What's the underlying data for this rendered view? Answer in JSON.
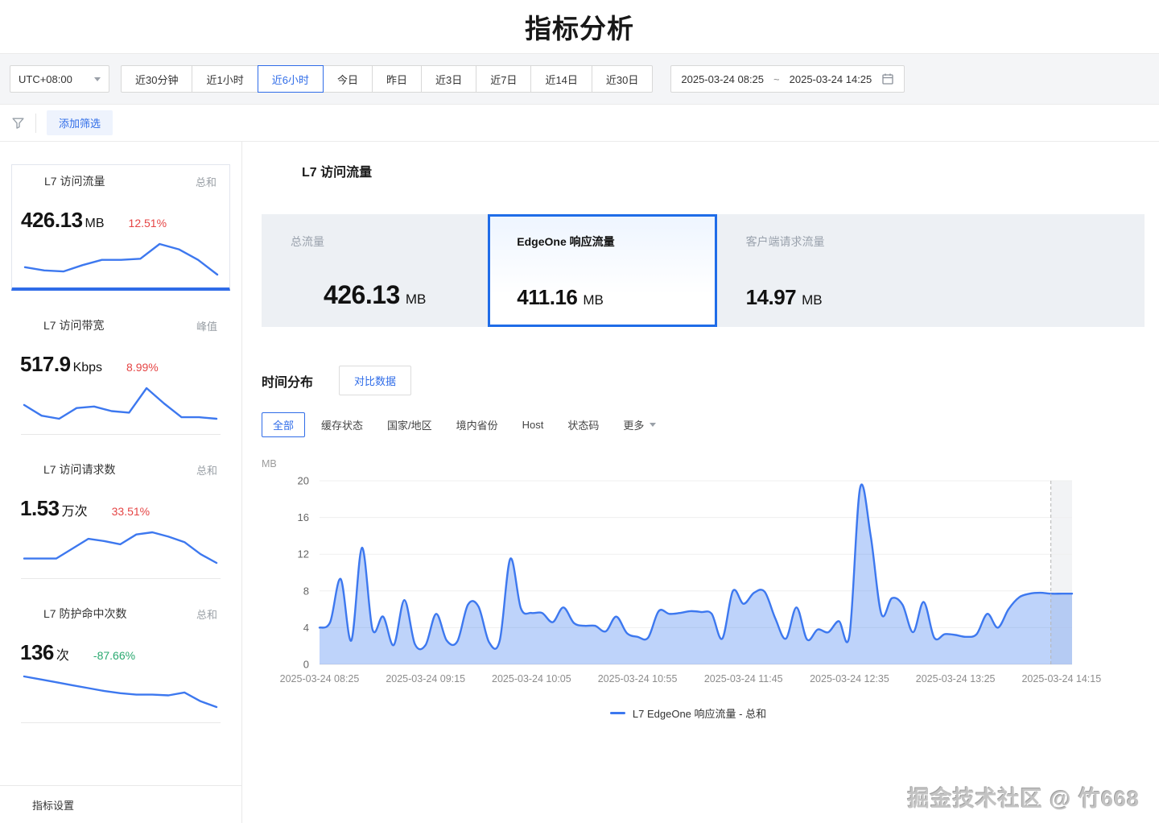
{
  "page_title": "指标分析",
  "colors": {
    "accent": "#2f6ce8",
    "chart_line": "#3d78ef",
    "chart_fill": "rgba(64,127,240,0.34)",
    "negative_red": "#e54545",
    "positive_green": "#2aa970"
  },
  "toolbar": {
    "timezone": "UTC+08:00",
    "ranges": [
      "近30分钟",
      "近1小时",
      "近6小时",
      "今日",
      "昨日",
      "近3日",
      "近7日",
      "近14日",
      "近30日"
    ],
    "selected_range": "近6小时",
    "date_start": "2025-03-24 08:25",
    "date_separator": "~",
    "date_end": "2025-03-24 14:25"
  },
  "filter_bar": {
    "add_filter_label": "添加筛选"
  },
  "sidebar": {
    "cards": [
      {
        "title": "L7 访问流量",
        "agg": "总和",
        "value": "426.13",
        "unit": "MB",
        "delta": "12.51%",
        "delta_color": "#e54545",
        "selected": true,
        "spark": [
          5.2,
          4.9,
          4.8,
          5.4,
          5.9,
          5.9,
          6.0,
          7.4,
          6.9,
          5.9,
          4.5
        ]
      },
      {
        "title": "L7 访问带宽",
        "agg": "峰值",
        "value": "517.9",
        "unit": "Kbps",
        "delta": "8.99%",
        "delta_color": "#e54545",
        "selected": false,
        "spark": [
          5.1,
          4.4,
          4.2,
          4.9,
          5.0,
          4.7,
          4.6,
          6.2,
          5.2,
          4.3,
          4.3,
          4.2
        ]
      },
      {
        "title": "L7 访问请求数",
        "agg": "总和",
        "value": "1.53",
        "unit": "万次",
        "delta": "33.51%",
        "delta_color": "#e54545",
        "selected": false,
        "spark": [
          4.0,
          4.0,
          4.0,
          4.9,
          5.8,
          5.6,
          5.3,
          6.2,
          6.4,
          6.0,
          5.5,
          4.4,
          3.6
        ]
      },
      {
        "title": "L7 防护命中次数",
        "agg": "总和",
        "value": "136",
        "unit": "次",
        "delta": "-87.66%",
        "delta_color": "#2aa970",
        "selected": false,
        "spark": [
          7.2,
          6.8,
          6.4,
          6.0,
          5.6,
          5.2,
          4.9,
          4.7,
          4.7,
          4.6,
          5.0,
          3.8,
          3.0
        ]
      }
    ],
    "footer": "指标设置"
  },
  "main": {
    "section_title": "L7 访问流量",
    "stat_tabs": [
      {
        "label": "总流量",
        "value": "426.13",
        "unit": "MB",
        "selected": false,
        "wide": false,
        "value_centered": true
      },
      {
        "label": "EdgeOne 响应流量",
        "value": "411.16",
        "unit": "MB",
        "selected": true,
        "wide": false,
        "value_centered": false
      },
      {
        "label": "客户端请求流量",
        "value": "14.97",
        "unit": "MB",
        "selected": false,
        "wide": true,
        "value_centered": false
      }
    ],
    "distribution_title": "时间分布",
    "compare_button": "对比数据",
    "dimension_tabs": [
      "全部",
      "缓存状态",
      "国家/地区",
      "境内省份",
      "Host",
      "状态码"
    ],
    "selected_dimension": "全部",
    "more_label": "更多",
    "unit_label": "MB",
    "legend": "L7 EdgeOne 响应流量 - 总和"
  },
  "chart_data": {
    "type": "area",
    "title": "时间分布",
    "xlabel": "",
    "ylabel": "MB",
    "date": "2025-03-24",
    "ylim": [
      0,
      20
    ],
    "y_ticks": [
      0,
      4,
      8,
      12,
      16,
      20
    ],
    "grid": "horizontal",
    "legend_position": "bottom",
    "x_tick_labels": [
      "2025-03-24 08:25",
      "2025-03-24 09:15",
      "2025-03-24 10:05",
      "2025-03-24 10:55",
      "2025-03-24 11:45",
      "2025-03-24 12:35",
      "2025-03-24 13:25",
      "2025-03-24 14:15"
    ],
    "x_tick_indices": [
      0,
      10,
      20,
      30,
      40,
      50,
      60,
      70
    ],
    "incomplete_from_index": 69,
    "series": [
      {
        "name": "L7 EdgeOne 响应流量 - 总和",
        "times": [
          "08:25",
          "08:30",
          "08:35",
          "08:40",
          "08:45",
          "08:50",
          "08:55",
          "09:00",
          "09:05",
          "09:10",
          "09:15",
          "09:20",
          "09:25",
          "09:30",
          "09:35",
          "09:40",
          "09:45",
          "09:50",
          "09:55",
          "10:00",
          "10:05",
          "10:10",
          "10:15",
          "10:20",
          "10:25",
          "10:30",
          "10:35",
          "10:40",
          "10:45",
          "10:50",
          "10:55",
          "11:00",
          "11:05",
          "11:10",
          "11:15",
          "11:20",
          "11:25",
          "11:30",
          "11:35",
          "11:40",
          "11:45",
          "11:50",
          "11:55",
          "12:00",
          "12:05",
          "12:10",
          "12:15",
          "12:20",
          "12:25",
          "12:30",
          "12:35",
          "12:40",
          "12:45",
          "12:50",
          "12:55",
          "13:00",
          "13:05",
          "13:10",
          "13:15",
          "13:20",
          "13:25",
          "13:30",
          "13:35",
          "13:40",
          "13:45",
          "13:50",
          "13:55",
          "14:00",
          "14:05",
          "14:10",
          "14:15",
          "14:20"
        ],
        "values": [
          4.0,
          4.6,
          9.3,
          2.6,
          12.7,
          3.8,
          5.2,
          2.1,
          7.0,
          2.2,
          2.1,
          5.5,
          2.6,
          2.5,
          6.5,
          6.3,
          2.4,
          2.6,
          11.5,
          6.1,
          5.6,
          5.6,
          4.6,
          6.2,
          4.5,
          4.2,
          4.2,
          3.6,
          5.2,
          3.4,
          3.0,
          2.9,
          5.8,
          5.5,
          5.6,
          5.8,
          5.7,
          5.5,
          2.8,
          8.0,
          6.6,
          7.8,
          7.9,
          5.0,
          2.8,
          6.2,
          2.7,
          3.8,
          3.5,
          4.7,
          3.2,
          19.2,
          14.0,
          5.5,
          7.2,
          6.5,
          3.5,
          6.8,
          2.9,
          3.3,
          3.2,
          3.0,
          3.3,
          5.5,
          4.0,
          6.0,
          7.3,
          7.7,
          7.8,
          7.7,
          7.7,
          7.7
        ]
      }
    ]
  },
  "watermark": "掘金技术社区 @ 竹668"
}
